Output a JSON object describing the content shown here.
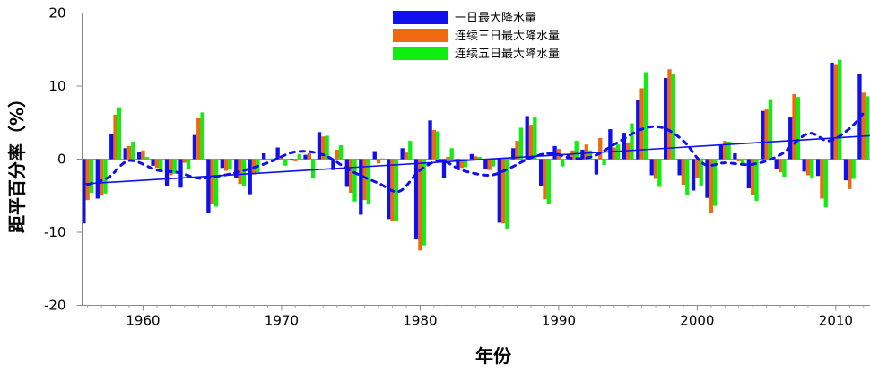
{
  "chart_data": {
    "type": "bar",
    "xlabel": "年份",
    "ylabel": "距平百分率（%）",
    "xlim": [
      1955.6,
      2012.5
    ],
    "ylim": [
      -20,
      20
    ],
    "yticks": [
      -20,
      -10,
      0,
      10,
      20
    ],
    "xticks": [
      1960,
      1970,
      1980,
      1990,
      2000,
      2010
    ],
    "legend_position": "top-center",
    "categories": [
      1956,
      1957,
      1958,
      1959,
      1960,
      1961,
      1962,
      1963,
      1964,
      1965,
      1966,
      1967,
      1968,
      1969,
      1970,
      1971,
      1972,
      1973,
      1974,
      1975,
      1976,
      1977,
      1978,
      1979,
      1980,
      1981,
      1982,
      1983,
      1984,
      1985,
      1986,
      1987,
      1988,
      1989,
      1990,
      1991,
      1992,
      1993,
      1994,
      1995,
      1996,
      1997,
      1998,
      1999,
      2000,
      2001,
      2002,
      2003,
      2004,
      2005,
      2006,
      2007,
      2008,
      2009,
      2010,
      2011,
      2012
    ],
    "series": [
      {
        "name": "一日最大降水量",
        "color": "#1010ee",
        "values": [
          -8.8,
          -5.4,
          3.5,
          1.5,
          1.0,
          -0.9,
          -3.7,
          -3.9,
          3.3,
          -7.3,
          -1.2,
          -2.6,
          -4.8,
          0.8,
          1.6,
          -0.2,
          0.6,
          3.7,
          -1.5,
          -3.8,
          -7.6,
          1.1,
          -8.2,
          1.5,
          -10.9,
          5.3,
          -2.6,
          -1.3,
          0.7,
          -1.3,
          -8.7,
          1.5,
          5.9,
          -3.7,
          1.8,
          0.6,
          1.3,
          -2.1,
          4.1,
          3.6,
          8.1,
          -2.2,
          11.1,
          -2.2,
          -4.3,
          -5.3,
          2.0,
          0.8,
          -4.0,
          6.6,
          -1.4,
          5.7,
          -1.7,
          -2.3,
          13.2,
          -2.9,
          11.6
        ]
      },
      {
        "name": "连续三日最大降水量",
        "color": "#ee6a10",
        "values": [
          -5.6,
          -5.0,
          6.1,
          1.8,
          1.2,
          -1.2,
          -2.2,
          -0.5,
          5.6,
          -6.2,
          -1.6,
          -3.4,
          -2.1,
          -0.2,
          0.3,
          -0.3,
          0.8,
          3.1,
          1.3,
          -4.6,
          -5.6,
          -0.6,
          -8.5,
          0.9,
          -12.5,
          4.0,
          0.3,
          -1.2,
          0.4,
          -1.5,
          -8.8,
          2.5,
          4.7,
          -5.5,
          1.4,
          1.2,
          2.0,
          2.9,
          1.6,
          2.3,
          9.7,
          -2.7,
          12.3,
          -3.5,
          -2.6,
          -7.3,
          2.5,
          -0.3,
          -4.9,
          6.8,
          -1.8,
          8.9,
          -2.2,
          -5.4,
          13.0,
          -4.1,
          9.1
        ]
      },
      {
        "name": "连续五日最大降水量",
        "color": "#10ee10",
        "values": [
          -4.6,
          -4.7,
          7.1,
          2.4,
          0.3,
          -1.5,
          -2.0,
          -1.4,
          6.4,
          -6.5,
          -1.3,
          -3.7,
          -1.8,
          0.1,
          -0.9,
          0.7,
          -2.6,
          3.2,
          1.9,
          -5.8,
          -6.2,
          0.1,
          -8.4,
          2.5,
          -11.8,
          3.8,
          1.5,
          -1.1,
          0.3,
          -1.0,
          -9.5,
          4.3,
          5.8,
          -6.1,
          -1.0,
          2.5,
          1.2,
          -0.8,
          2.0,
          4.9,
          11.9,
          -3.8,
          11.6,
          -4.9,
          -3.7,
          -6.4,
          2.4,
          -0.7,
          -5.7,
          8.2,
          -2.4,
          8.5,
          -2.5,
          -6.6,
          13.6,
          -2.7,
          8.6
        ]
      }
    ],
    "trend_line": {
      "color": "#1010ee",
      "x": [
        1955.6,
        2012.5
      ],
      "y": [
        -3.4,
        3.2
      ]
    },
    "smoothed_curve": {
      "color": "#1010ee",
      "x": [
        1956,
        1957.5,
        1959,
        1961,
        1962.5,
        1964,
        1965.5,
        1967,
        1969,
        1971,
        1973,
        1975,
        1977,
        1978.5,
        1980,
        1981.5,
        1983,
        1985,
        1986.5,
        1988,
        1989.5,
        1991,
        1992.5,
        1994,
        1996,
        1997.5,
        1999,
        2000.5,
        2002,
        2004,
        2006,
        2008,
        2009.5,
        2011,
        2012
      ],
      "y": [
        -3.5,
        -2.5,
        -0.2,
        -1.5,
        -1.8,
        -2.6,
        -2.3,
        -1.7,
        -0.5,
        1.0,
        0.6,
        -1.6,
        -3.3,
        -4.4,
        -1.5,
        -0.2,
        -1.5,
        -2.2,
        -1.2,
        0.2,
        0.8,
        0.1,
        0.4,
        2.0,
        4.1,
        4.3,
        2.5,
        -0.7,
        -0.5,
        -0.7,
        0.6,
        3.5,
        2.5,
        4.2,
        6.3
      ]
    }
  }
}
